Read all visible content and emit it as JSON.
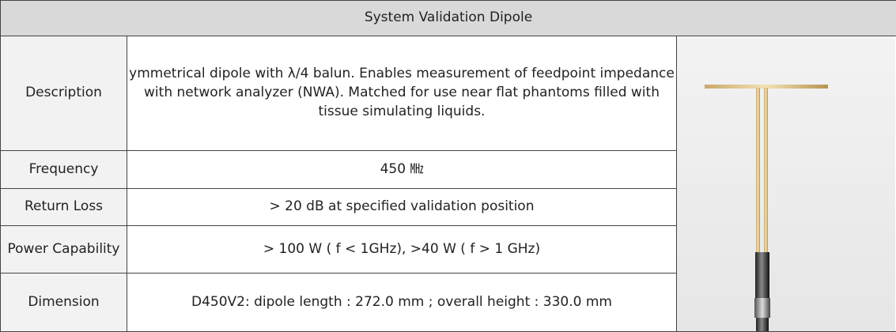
{
  "header": {
    "title": "System Validation Dipole"
  },
  "table": {
    "rows": [
      [
        "Description",
        "ymmetrical dipole with  λ/4 balun. Enables measurement of feedpoint impedance with network analyzer (NWA). Matched for use near flat phantoms filled with tissue simulating liquids."
      ],
      [
        "Frequency",
        "450 ㎒"
      ],
      [
        "Return Loss",
        "> 20 dB at specified validation position"
      ],
      [
        "Power Capability",
        "> 100 W ( f < 1GHz), >40 W ( f > 1 GHz)"
      ],
      [
        "Dimension",
        "D450V2: dipole length : 272.0 mm ; overall height : 330.0 mm"
      ]
    ]
  }
}
